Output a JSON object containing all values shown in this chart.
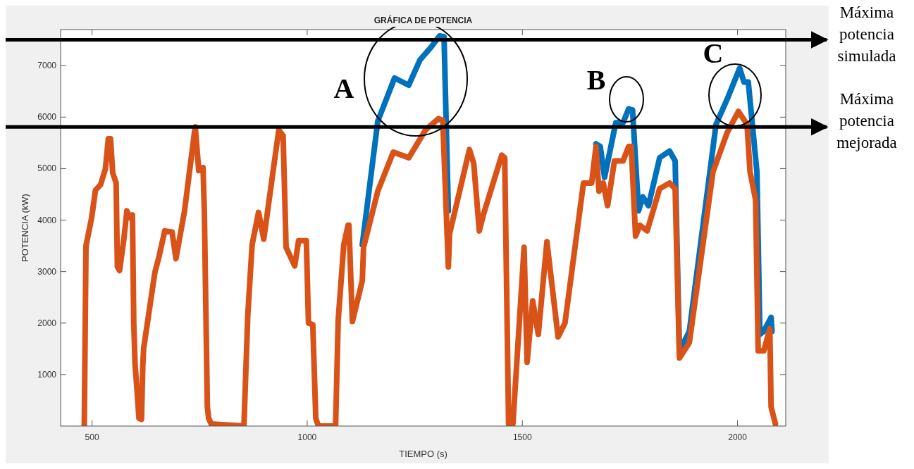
{
  "chart_data": {
    "type": "line",
    "title": "GRÁFICA DE POTENCIA",
    "xlabel": "TIEMPO (s)",
    "ylabel": "POTENCIA (kW)",
    "xlim": [
      427,
      2112
    ],
    "ylim": [
      0,
      7700
    ],
    "xticks": [
      500,
      1000,
      1500,
      2000
    ],
    "yticks": [
      1000,
      2000,
      3000,
      4000,
      5000,
      6000,
      7000
    ],
    "grid": false,
    "line_style": "solid",
    "marker": "none",
    "series": [
      {
        "color": "#0072bd",
        "x": [
          1128,
          1164,
          1203,
          1236,
          1262,
          1288,
          1308,
          1318,
          1328,
          null,
          1671,
          1681,
          1691,
          1717,
          1734,
          1747,
          1756,
          1770,
          1780,
          1793,
          1819,
          1842,
          1855,
          1865,
          1888,
          1950,
          1976,
          2005,
          2015,
          2025,
          2045,
          2052,
          2061,
          2078,
          2080
        ],
        "values": [
          3520,
          5920,
          6760,
          6620,
          7110,
          7360,
          7580,
          7560,
          4180,
          null,
          5480,
          5430,
          4830,
          5890,
          5890,
          6160,
          6140,
          4180,
          4450,
          4280,
          5210,
          5340,
          5150,
          1460,
          1840,
          5860,
          6350,
          6950,
          6680,
          6680,
          4940,
          1780,
          1840,
          2110,
          1840
        ]
      },
      {
        "color": "#d95319",
        "x": [
          482,
          486,
          499,
          508,
          520,
          531,
          538,
          543,
          548,
          556,
          559,
          564,
          574,
          581,
          589,
          594,
          597,
          600,
          606,
          609,
          615,
          618,
          620,
          646,
          656,
          669,
          686,
          695,
          715,
          738,
          740,
          748,
          758,
          761,
          768,
          771,
          777,
          853,
          862,
          872,
          887,
          899,
          934,
          944,
          951,
          971,
          980,
          998,
          1003,
          1013,
          1020,
          1026,
          1066,
          1072,
          1085,
          1095,
          1097,
          1105,
          1128,
          1131,
          1164,
          1200,
          1236,
          1275,
          1305,
          1315,
          1328,
          1331,
          1377,
          1387,
          1400,
          1410,
          1452,
          1459,
          1468,
          1478,
          1504,
          1511,
          1524,
          1537,
          1557,
          1583,
          1599,
          1642,
          1661,
          1671,
          1678,
          1688,
          1698,
          1714,
          1734,
          1747,
          1753,
          1763,
          1773,
          1790,
          1819,
          1842,
          1855,
          1865,
          1888,
          1943,
          1976,
          2002,
          2022,
          2029,
          2042,
          2048,
          2061,
          2075,
          2078,
          2088
        ],
        "values": [
          0,
          3500,
          4040,
          4580,
          4690,
          4990,
          5580,
          5580,
          4920,
          4720,
          3090,
          3020,
          3630,
          4180,
          4040,
          4100,
          2000,
          1200,
          530,
          150,
          130,
          1180,
          1510,
          2980,
          3300,
          3790,
          3770,
          3250,
          4180,
          5700,
          5810,
          4960,
          5020,
          4180,
          370,
          150,
          40,
          0,
          2160,
          3520,
          4150,
          3630,
          5750,
          5640,
          3470,
          3110,
          3600,
          3600,
          2000,
          1970,
          150,
          0,
          0,
          2050,
          3520,
          3900,
          3900,
          2030,
          2820,
          3470,
          4560,
          5320,
          5210,
          5750,
          5970,
          5940,
          3090,
          3740,
          5370,
          5100,
          3790,
          4120,
          5260,
          5210,
          40,
          40,
          3470,
          1240,
          2430,
          1780,
          3580,
          1730,
          2000,
          4720,
          4720,
          5430,
          4560,
          4720,
          4280,
          5150,
          5150,
          5430,
          5430,
          3690,
          3900,
          3790,
          4610,
          4720,
          4610,
          1320,
          1620,
          4940,
          5700,
          6110,
          5860,
          4940,
          4390,
          1460,
          1460,
          1890,
          370,
          40
        ]
      }
    ],
    "ref_lines": [
      {
        "axis": "y",
        "value": 7500,
        "label": "Máxima potencia simulada",
        "color": "#000000"
      },
      {
        "axis": "y",
        "value": 5810,
        "label": "Máxima potencia mejorada",
        "color": "#000000"
      }
    ],
    "annotations": [
      "A",
      "B",
      "C"
    ]
  }
}
